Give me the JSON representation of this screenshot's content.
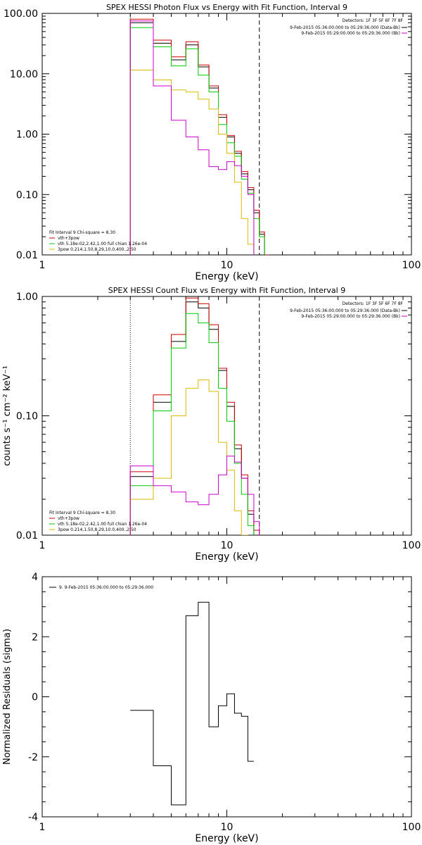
{
  "chart_data": [
    {
      "type": "line",
      "title": "SPEX HESSI Photon Flux vs Energy with Fit Function, Interval 9",
      "xlabel": "Energy (keV)",
      "ylabel": "",
      "xscale": "log",
      "yscale": "log",
      "xlim": [
        1,
        100
      ],
      "ylim": [
        0.01,
        100
      ],
      "xtick_labels": [
        "1",
        "10",
        "100"
      ],
      "ytick_labels": [
        "0.01",
        "0.10",
        "1.00",
        "10.00",
        "100.00"
      ],
      "ytick_values": [
        0.01,
        0.1,
        1,
        10,
        100
      ],
      "vlines": [
        {
          "x": 3.0,
          "style": "dotted",
          "color": "#000000"
        },
        {
          "x": 15.0,
          "style": "dashed",
          "color": "#000000"
        }
      ],
      "legend_top_right": {
        "header": "Detectors: 1F 3F 5F 6F 7F 8F",
        "entries": [
          {
            "label": "9-Feb-2015 05:36:00.000 to 05:29:36.000 (Data-Bk)",
            "color": "#000000"
          },
          {
            "label": "9-Feb-2015 05:29:00.000 to 05:29:36.000 (Bk)",
            "color": "#cc00cc"
          }
        ]
      },
      "legend_bottom_left": {
        "header": "Fit Interval 9   Chi-square = 8.30",
        "entries": [
          {
            "label": "vth+3pow",
            "color": "#cc0000"
          },
          {
            "label": "vth 5.18e-02,2.42,1.00  full chian 1.26e-04",
            "color": "#00cc00"
          },
          {
            "label": "3pow 0.214,1.50,8.29,10.0,400.,2.50",
            "color": "#ddbb00"
          }
        ]
      },
      "edges": [
        3.0,
        4.0,
        5.0,
        6.0,
        7.0,
        8.0,
        9.0,
        10.0,
        11.0,
        12.0,
        13.0,
        14.0,
        15.0,
        16.0,
        17.0,
        18.0,
        19.0
      ],
      "series": [
        {
          "name": "Data-Bk",
          "color": "#000000",
          "values": [
            70,
            32,
            17,
            30,
            13,
            5.8,
            1.9,
            0.9,
            0.48,
            0.22,
            0.12,
            0.05,
            0.022,
            0.009,
            null,
            null
          ]
        },
        {
          "name": "vth+3pow",
          "color": "#cc0000",
          "values": [
            80,
            36,
            19,
            34,
            14,
            6.3,
            2.1,
            0.95,
            0.52,
            0.24,
            0.13,
            0.055,
            0.024,
            0.01,
            null,
            null
          ]
        },
        {
          "name": "vth",
          "color": "#00cc00",
          "values": [
            58,
            28,
            13.5,
            26,
            9.5,
            5.0,
            1.45,
            0.72,
            0.43,
            0.18,
            0.105,
            0.04,
            0.02,
            null,
            null,
            null
          ]
        },
        {
          "name": "3pow",
          "color": "#ddbb00",
          "values": [
            11.5,
            7.9,
            5.4,
            5.0,
            3.8,
            2.6,
            1.0,
            0.48,
            0.16,
            0.04,
            0.015,
            null,
            null,
            null,
            null,
            null
          ]
        },
        {
          "name": "Bk",
          "color": "#cc00cc",
          "values": [
            75,
            6.3,
            1.7,
            0.9,
            0.55,
            0.29,
            0.26,
            0.35,
            0.3,
            0.2,
            0.1,
            null,
            null,
            null,
            null,
            null
          ]
        }
      ]
    },
    {
      "type": "line",
      "title": "SPEX HESSI Count Flux vs Energy with Fit Function, Interval 9",
      "xlabel": "Energy (keV)",
      "ylabel": "counts s⁻¹ cm⁻² keV⁻¹",
      "xscale": "log",
      "yscale": "log",
      "xlim": [
        1,
        100
      ],
      "ylim": [
        0.01,
        1.0
      ],
      "xtick_labels": [
        "1",
        "10",
        "100"
      ],
      "ytick_labels": [
        "0.01",
        "0.10",
        "1.00"
      ],
      "ytick_values": [
        0.01,
        0.1,
        1
      ],
      "vlines": [
        {
          "x": 3.0,
          "style": "dotted",
          "color": "#000000"
        },
        {
          "x": 15.0,
          "style": "dashed",
          "color": "#000000"
        }
      ],
      "legend_top_right": {
        "header": "Detectors: 1F 3F 5F 6F 7F 8F",
        "entries": [
          {
            "label": "9-Feb-2015 05:36:00.000 to 05:29:36.000 (Data-Bk)",
            "color": "#000000"
          },
          {
            "label": "9-Feb-2015 05:29:00.000 to 05:29:36.000 (Bk)",
            "color": "#cc00cc"
          }
        ]
      },
      "legend_bottom_left": {
        "header": "Fit Interval 9   Chi-square = 8.30",
        "entries": [
          {
            "label": "vth+3pow",
            "color": "#cc0000"
          },
          {
            "label": "vth 5.18e-02,2.42,1.00  full chian 1.26e-04",
            "color": "#00cc00"
          },
          {
            "label": "3pow 0.214,1.50,8.29,10.0,400.,2.50",
            "color": "#ddbb00"
          }
        ]
      },
      "edges": [
        3.0,
        4.0,
        5.0,
        6.0,
        7.0,
        8.0,
        9.0,
        10.0,
        11.0,
        12.0,
        13.0,
        14.0,
        15.0
      ],
      "series": [
        {
          "name": "Data-Bk",
          "color": "#000000",
          "values": [
            0.031,
            0.13,
            0.42,
            0.9,
            0.8,
            0.53,
            0.24,
            0.12,
            0.053,
            0.03,
            0.015,
            null
          ]
        },
        {
          "name": "vth+3pow",
          "color": "#cc0000",
          "values": [
            0.034,
            0.15,
            0.48,
            0.97,
            0.87,
            0.58,
            0.25,
            0.13,
            0.057,
            0.032,
            0.016,
            0.011
          ]
        },
        {
          "name": "vth",
          "color": "#00cc00",
          "values": [
            0.026,
            0.11,
            0.37,
            0.72,
            0.6,
            0.41,
            0.17,
            0.09,
            0.04,
            0.022,
            0.012,
            null
          ]
        },
        {
          "name": "3pow",
          "color": "#ddbb00",
          "values": [
            0.02,
            0.03,
            0.1,
            0.17,
            0.2,
            0.16,
            0.06,
            0.035,
            0.016,
            0.01,
            null,
            null
          ]
        },
        {
          "name": "Bk",
          "color": "#cc00cc",
          "values": [
            0.038,
            0.026,
            0.023,
            0.019,
            0.018,
            0.022,
            0.032,
            0.046,
            0.041,
            0.03,
            0.022,
            0.013
          ]
        }
      ]
    },
    {
      "type": "line",
      "title": "",
      "xlabel": "Energy (keV)",
      "ylabel": "Normalized Residuals (sigma)",
      "xscale": "log",
      "yscale": "linear",
      "xlim": [
        1,
        100
      ],
      "ylim": [
        -4,
        4
      ],
      "xtick_labels": [
        "1",
        "10",
        "100"
      ],
      "ytick_labels": [
        "-4",
        "-2",
        "0",
        "2",
        "4"
      ],
      "ytick_values": [
        -4,
        -2,
        0,
        2,
        4
      ],
      "legend_top_left": {
        "entries": [
          {
            "label": "9.  9-Feb-2015 05:36:00.000 to 05:29:36.000",
            "color": "#000000"
          }
        ]
      },
      "edges": [
        3.0,
        4.0,
        5.0,
        6.0,
        7.0,
        8.0,
        9.0,
        10.0,
        11.0,
        12.0,
        13.0,
        14.0,
        15.0
      ],
      "series": [
        {
          "name": "residuals",
          "color": "#000000",
          "values": [
            -0.45,
            -2.3,
            -3.6,
            2.7,
            3.15,
            -1.0,
            -0.3,
            0.1,
            -0.55,
            -0.65,
            -2.15,
            null
          ]
        }
      ]
    }
  ]
}
